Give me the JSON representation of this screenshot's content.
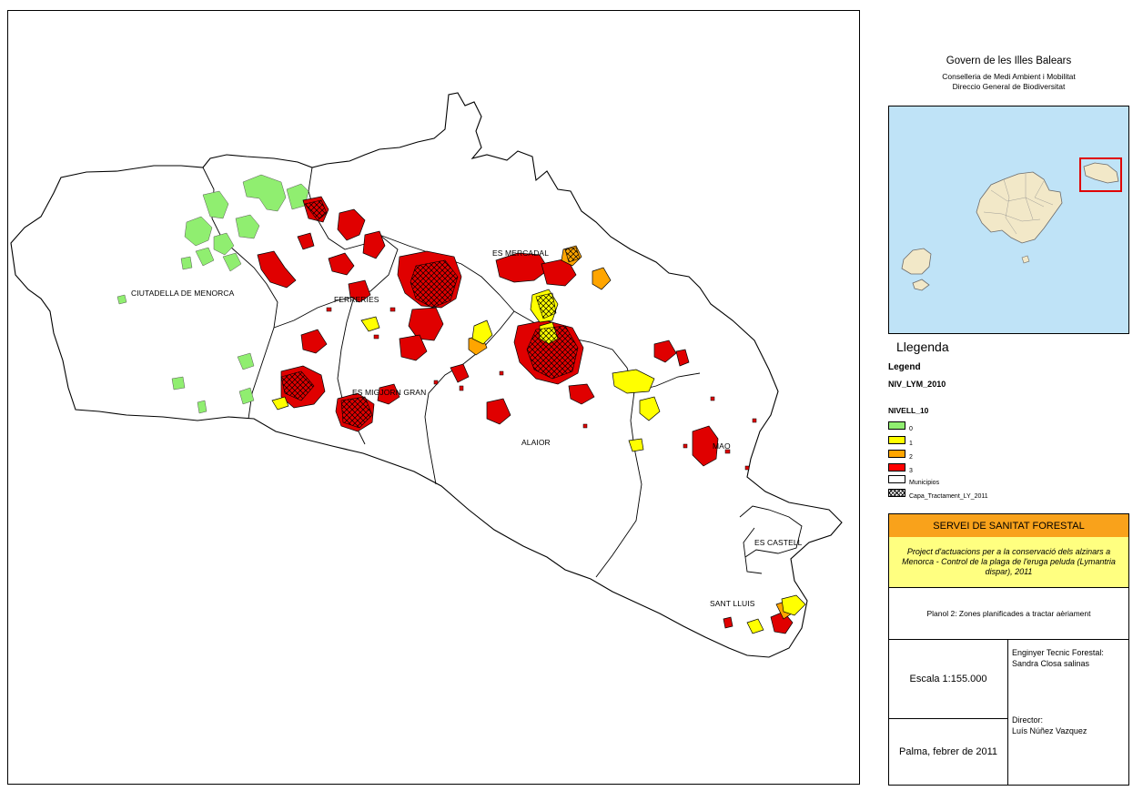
{
  "header": {
    "title": "Govern de les Illes Balears",
    "subtitle1": "Conselleria de Medi Ambient i Mobilitat",
    "subtitle2": "Direccio General de Biodiversitat"
  },
  "municipalities": [
    {
      "key": "ciutadella",
      "label": "CIUTADELLA DE MENORCA"
    },
    {
      "key": "ferreries",
      "label": "FERRERIES"
    },
    {
      "key": "mercadal",
      "label": "ES MERCADAL"
    },
    {
      "key": "migjorn",
      "label": "ES MIGJORN GRAN"
    },
    {
      "key": "alaior",
      "label": "ALAIOR"
    },
    {
      "key": "mao",
      "label": "MAO"
    },
    {
      "key": "castell",
      "label": "ES CASTELL"
    },
    {
      "key": "santlluis",
      "label": "SANT LLUIS"
    }
  ],
  "legend": {
    "title": "Llegenda",
    "subtitle": "Legend",
    "layer": "NIV_LYM_2010",
    "field": "NIVELL_10",
    "items": [
      {
        "label": "0",
        "color": "#90ee70"
      },
      {
        "label": "1",
        "color": "#ffff00"
      },
      {
        "label": "2",
        "color": "#ffa500"
      },
      {
        "label": "3",
        "color": "#ff0000"
      },
      {
        "label": "Municipios",
        "color": "#ffffff"
      },
      {
        "label": "Capa_Tractament_LY_2011",
        "color": "hatch"
      }
    ]
  },
  "title_block": {
    "service": "SERVEI DE SANITAT FORESTAL",
    "project": "Project d'actuacions per a la conservació dels alzinars a Menorca - Control de la plaga de l'eruga peluda (Lymantria dispar), 2011",
    "plan": "Planol 2: Zones planificades a tractar aèriament",
    "scale": "Escala 1:155.000",
    "date": "Palma, febrer de 2011",
    "engineer_role": "Enginyer Tecnic Forestal:",
    "engineer_name": "Sandra Closa salinas",
    "director_role": "Director:",
    "director_name": "Luís Núñez Vazquez"
  },
  "colors": {
    "level0": "#90ee70",
    "level1": "#ffff00",
    "level2": "#ffa500",
    "level3": "#ff0000",
    "sea": "#bfe3f7",
    "islands": "#f2e8c8",
    "service_band": "#f9a21b",
    "project_band": "#ffff80",
    "highlight_box": "#e00000"
  }
}
